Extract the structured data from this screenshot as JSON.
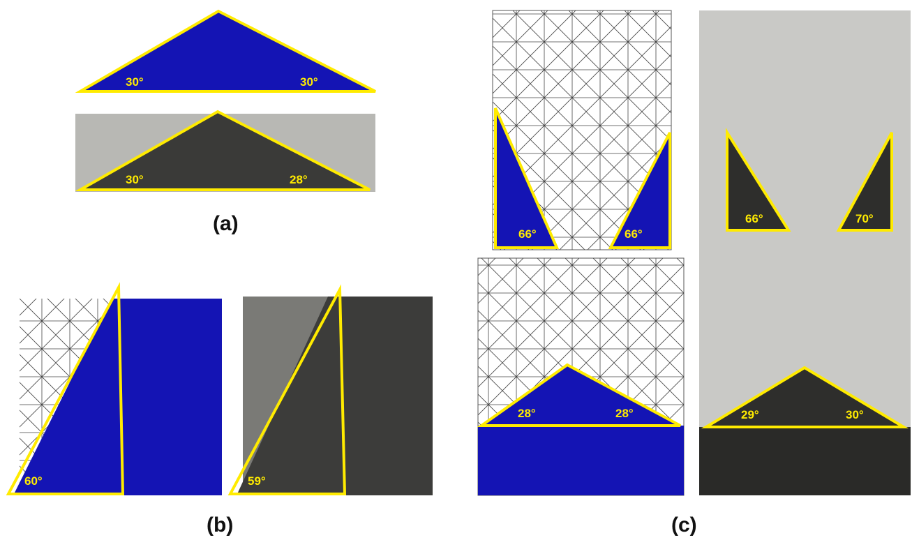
{
  "panels": [
    {
      "label": "(a)",
      "angles": [
        "30°",
        "30°",
        "30°",
        "28°"
      ]
    },
    {
      "label": "(b)",
      "angles": [
        "60°",
        "59°"
      ]
    },
    {
      "label": "(c)",
      "angles": [
        "66°",
        "66°",
        "28°",
        "28°",
        "66°",
        "70°",
        "29°",
        "30°"
      ]
    }
  ]
}
